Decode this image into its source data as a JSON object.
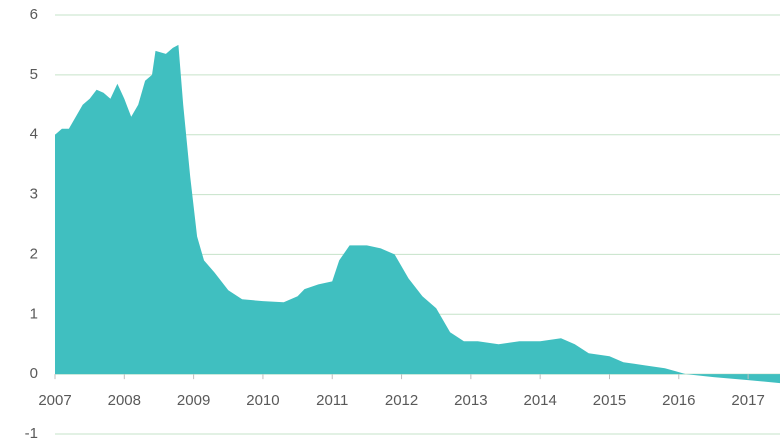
{
  "chart_data": {
    "type": "area",
    "x": [
      2007.0,
      2007.1,
      2007.2,
      2007.3,
      2007.4,
      2007.5,
      2007.6,
      2007.7,
      2007.8,
      2007.9,
      2008.0,
      2008.1,
      2008.2,
      2008.3,
      2008.4,
      2008.45,
      2008.6,
      2008.7,
      2008.78,
      2008.85,
      2008.95,
      2009.05,
      2009.15,
      2009.3,
      2009.5,
      2009.7,
      2010.0,
      2010.3,
      2010.5,
      2010.6,
      2010.8,
      2011.0,
      2011.1,
      2011.25,
      2011.5,
      2011.7,
      2011.9,
      2012.1,
      2012.3,
      2012.5,
      2012.7,
      2012.9,
      2013.1,
      2013.4,
      2013.7,
      2014.0,
      2014.3,
      2014.5,
      2014.7,
      2015.0,
      2015.2,
      2015.5,
      2015.8,
      2015.95,
      2016.1,
      2016.5,
      2017.0,
      2017.46
    ],
    "values": [
      4.0,
      4.1,
      4.1,
      4.3,
      4.5,
      4.6,
      4.75,
      4.7,
      4.6,
      4.85,
      4.6,
      4.3,
      4.5,
      4.9,
      5.0,
      5.4,
      5.35,
      5.45,
      5.5,
      4.5,
      3.3,
      2.3,
      1.9,
      1.7,
      1.4,
      1.25,
      1.22,
      1.2,
      1.3,
      1.42,
      1.5,
      1.55,
      1.9,
      2.15,
      2.15,
      2.1,
      2.0,
      1.6,
      1.3,
      1.1,
      0.7,
      0.55,
      0.55,
      0.5,
      0.55,
      0.55,
      0.6,
      0.5,
      0.35,
      0.3,
      0.2,
      0.15,
      0.1,
      0.05,
      0.0,
      -0.05,
      -0.1,
      -0.15
    ],
    "color": "#40bfc0",
    "xlim": [
      2007,
      2017.46
    ],
    "xticks": [
      2007,
      2008,
      2009,
      2010,
      2011,
      2012,
      2013,
      2014,
      2015,
      2016,
      2017
    ],
    "ylim": [
      -1,
      6
    ],
    "yticks": [
      -1,
      0,
      1,
      2,
      3,
      4,
      5,
      6
    ],
    "grid": true
  }
}
